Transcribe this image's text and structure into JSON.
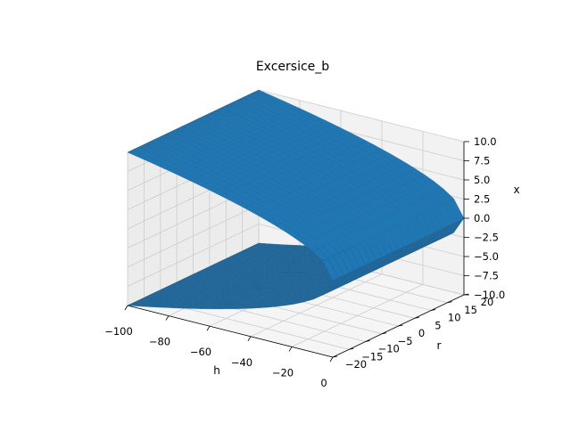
{
  "chart_data": {
    "type": "surface",
    "title": "Excersice_b",
    "xlabel": "h",
    "ylabel": "r",
    "zlabel": "x",
    "xlim": [
      -100,
      0
    ],
    "ylim": [
      -20,
      20
    ],
    "zlim": [
      -10,
      10
    ],
    "x_ticks": [
      "−100",
      "−80",
      "−60",
      "−40",
      "−20",
      "0"
    ],
    "y_ticks": [
      "−20",
      "−15",
      "−10",
      "−5",
      "0",
      "5",
      "10",
      "15",
      "20"
    ],
    "z_ticks": [
      "−10.0",
      "−7.5",
      "−5.0",
      "−2.5",
      "0.0",
      "2.5",
      "5.0",
      "7.5",
      "10.0"
    ],
    "surface_formula": "x = ±sqrt(-h)",
    "grid": true,
    "surface_color": "#1f77b4",
    "pane_color": "#f2f2f2",
    "grid_color": "#cccccc"
  }
}
